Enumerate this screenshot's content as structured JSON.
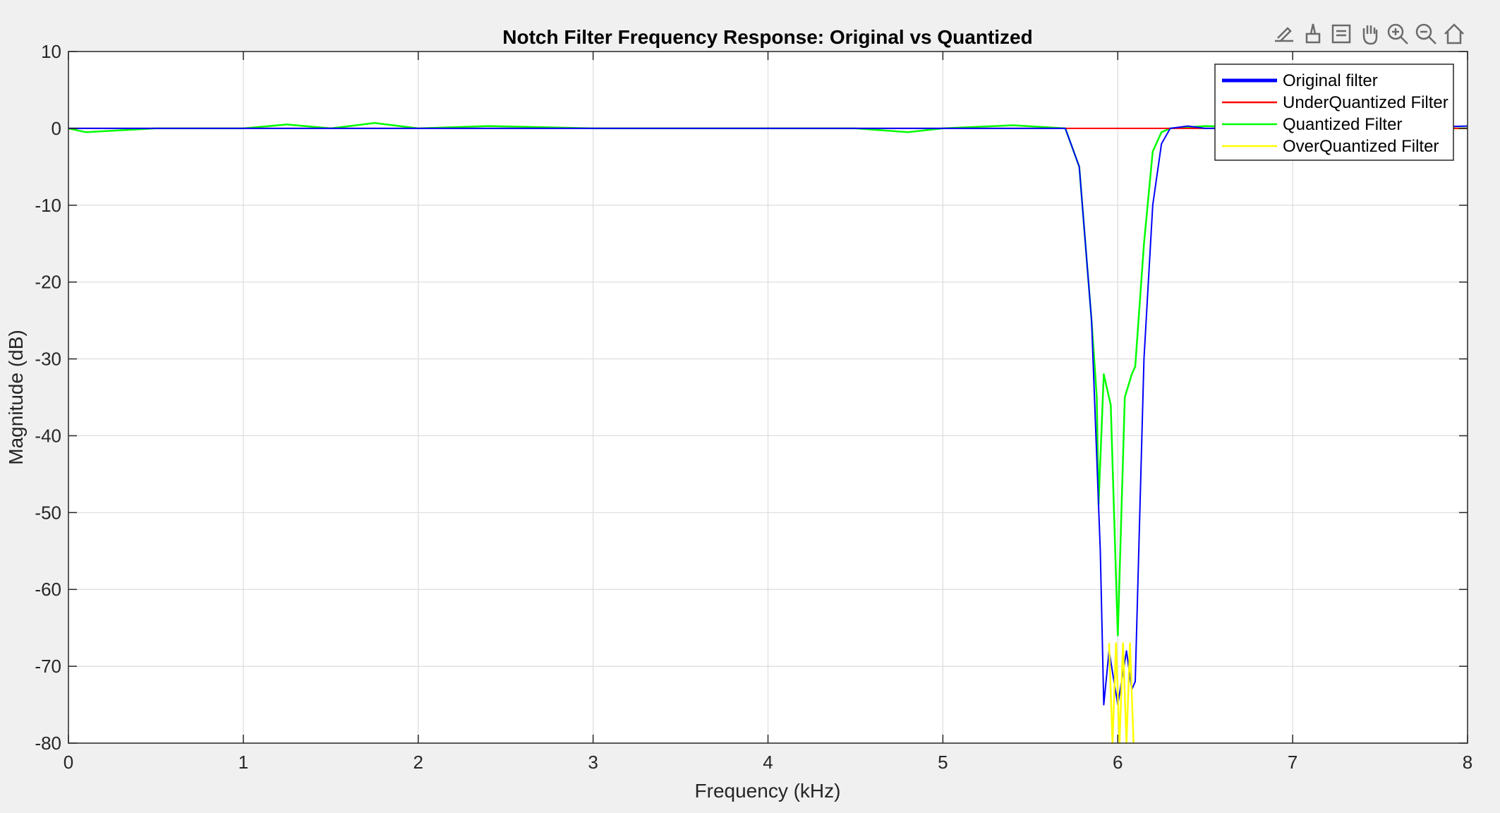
{
  "toolbar": {
    "icons": [
      "export-icon",
      "brush-icon",
      "datatip-icon",
      "pan-icon",
      "zoom-in-icon",
      "zoom-out-icon",
      "home-icon"
    ]
  },
  "chart_data": {
    "type": "line",
    "title": "Notch Filter Frequency Response: Original vs Quantized",
    "xlabel": "Frequency (kHz)",
    "ylabel": "Magnitude (dB)",
    "xlim": [
      0,
      8
    ],
    "ylim": [
      -80,
      10
    ],
    "xticks": [
      "0",
      "1",
      "2",
      "3",
      "4",
      "5",
      "6",
      "7",
      "8"
    ],
    "yticks": [
      "10",
      "0",
      "-10",
      "-20",
      "-30",
      "-40",
      "-50",
      "-60",
      "-70",
      "-80"
    ],
    "grid": true,
    "legend_position": "top-right",
    "series": [
      {
        "name": "Original filter",
        "color": "#0000ff",
        "x": [
          0,
          0.5,
          1,
          1.5,
          2,
          2.5,
          3,
          3.5,
          4,
          4.5,
          5,
          5.5,
          5.7,
          5.78,
          5.85,
          5.9,
          5.92,
          5.95,
          6.0,
          6.05,
          6.08,
          6.1,
          6.15,
          6.2,
          6.25,
          6.3,
          6.4,
          6.5,
          7,
          7.5,
          8
        ],
        "y": [
          0,
          0,
          0,
          0,
          0,
          0,
          0,
          0,
          0,
          0,
          0,
          0,
          0,
          -5,
          -25,
          -55,
          -75,
          -68,
          -75,
          -68,
          -73,
          -72,
          -30,
          -10,
          -2,
          0,
          0.3,
          0,
          0,
          0,
          0.3
        ]
      },
      {
        "name": "UnderQuantized Filter",
        "color": "#ff0000",
        "x": [
          0,
          1,
          2,
          3,
          4,
          5,
          6,
          7,
          8
        ],
        "y": [
          0,
          0,
          0,
          0,
          0,
          0,
          0,
          0,
          0
        ]
      },
      {
        "name": "Quantized Filter",
        "color": "#00ff00",
        "x": [
          0,
          0.1,
          0.5,
          1,
          1.25,
          1.5,
          1.75,
          2,
          2.4,
          3,
          3.5,
          4,
          4.5,
          4.8,
          5,
          5.4,
          5.7,
          5.78,
          5.85,
          5.88,
          5.89,
          5.92,
          5.96,
          6.0,
          6.04,
          6.08,
          6.1,
          6.15,
          6.2,
          6.25,
          6.3,
          6.5,
          7,
          7.5,
          8
        ],
        "y": [
          0,
          -0.5,
          0,
          0,
          0.5,
          0,
          0.7,
          0,
          0.3,
          0,
          0,
          0,
          0,
          -0.5,
          0,
          0.4,
          0,
          -5,
          -25,
          -35,
          -49,
          -32,
          -36,
          -66,
          -35,
          -32,
          -31,
          -15,
          -3,
          -0.5,
          0,
          0.3,
          0,
          0,
          0
        ]
      },
      {
        "name": "OverQuantized Filter",
        "color": "#ffff00",
        "x": [
          5.95,
          5.97,
          5.99,
          6.01,
          6.03,
          6.05,
          6.07,
          6.09
        ],
        "y": [
          -67,
          -80,
          -67,
          -80,
          -67,
          -80,
          -67,
          -80
        ]
      }
    ]
  }
}
